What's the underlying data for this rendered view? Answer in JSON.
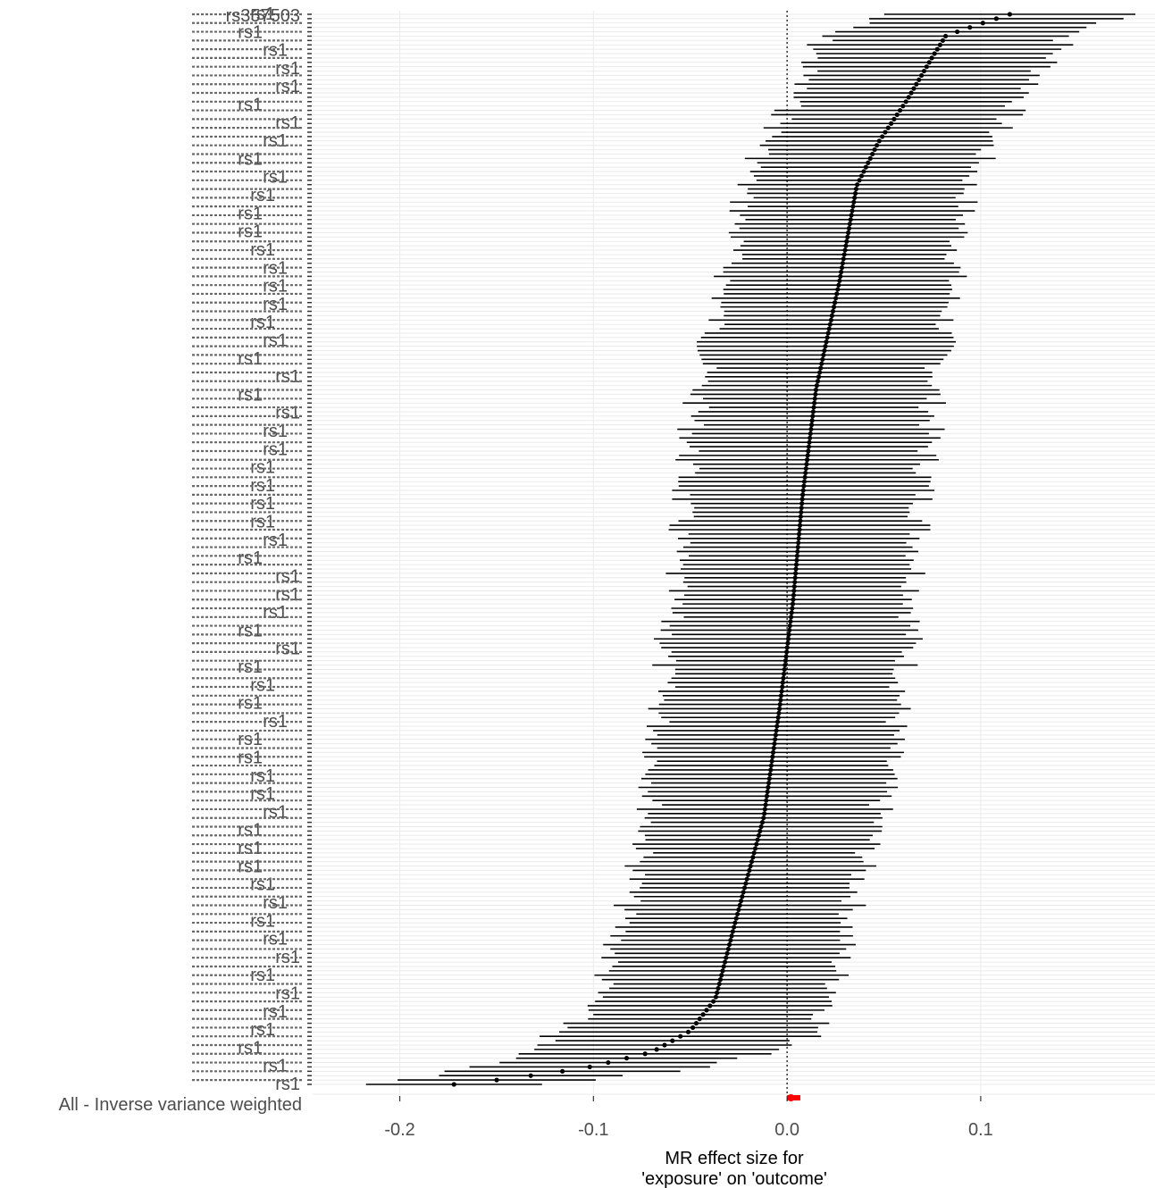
{
  "chart_data": {
    "type": "forest",
    "title": "",
    "xlabel_lines": [
      "MR effect size for",
      "'exposure' on 'outcome'"
    ],
    "ylabel": "",
    "xlim": [
      -0.245,
      0.19
    ],
    "x_ticks": [
      -0.2,
      -0.1,
      0.0,
      0.1
    ],
    "x_tick_labels": [
      "-0.2",
      "-0.1",
      "0.0",
      "0.1"
    ],
    "reference_line": 0.0,
    "grid": true,
    "n_snps": 246,
    "snp_label_prefix": "rs",
    "visible_snp_labels": [
      "rs1",
      "rs357503"
    ],
    "ordering": "descending by effect",
    "estimate_profile": [
      {
        "position": 0.0,
        "value": 0.115
      },
      {
        "position": 0.01,
        "value": 0.098
      },
      {
        "position": 0.02,
        "value": 0.082
      },
      {
        "position": 0.04,
        "value": 0.075
      },
      {
        "position": 0.08,
        "value": 0.062
      },
      {
        "position": 0.12,
        "value": 0.047
      },
      {
        "position": 0.16,
        "value": 0.036
      },
      {
        "position": 0.25,
        "value": 0.027
      },
      {
        "position": 0.35,
        "value": 0.015
      },
      {
        "position": 0.45,
        "value": 0.008
      },
      {
        "position": 0.55,
        "value": 0.003
      },
      {
        "position": 0.65,
        "value": -0.004
      },
      {
        "position": 0.75,
        "value": -0.012
      },
      {
        "position": 0.85,
        "value": -0.027
      },
      {
        "position": 0.92,
        "value": -0.037
      },
      {
        "position": 0.95,
        "value": -0.05
      },
      {
        "position": 0.97,
        "value": -0.07
      },
      {
        "position": 0.985,
        "value": -0.105
      },
      {
        "position": 0.995,
        "value": -0.145
      },
      {
        "position": 1.0,
        "value": -0.172
      }
    ],
    "ci_halfwidth_profile": [
      {
        "position": 0.0,
        "value": 0.065
      },
      {
        "position": 0.1,
        "value": 0.058
      },
      {
        "position": 0.2,
        "value": 0.058
      },
      {
        "position": 0.4,
        "value": 0.062
      },
      {
        "position": 0.6,
        "value": 0.063
      },
      {
        "position": 0.8,
        "value": 0.058
      },
      {
        "position": 0.9,
        "value": 0.06
      },
      {
        "position": 0.97,
        "value": 0.068
      },
      {
        "position": 1.0,
        "value": 0.048
      }
    ],
    "summary": {
      "label": "All - Inverse variance weighted",
      "estimate": 0.002,
      "ci_low": 0.0,
      "ci_high": 0.005,
      "color": "#ff0000"
    },
    "colors": {
      "points": "#000000",
      "summary": "#ff0000",
      "gridline": "#ebebeb",
      "reference": "#000000",
      "tick_text": "#4d4d4d"
    }
  }
}
